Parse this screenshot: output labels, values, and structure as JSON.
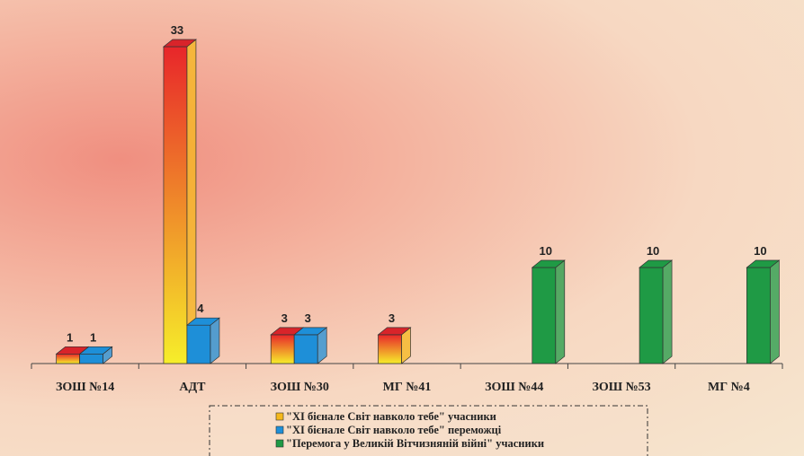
{
  "chart_data": {
    "type": "bar3d",
    "categories": [
      "ЗОШ №14",
      "АДТ",
      "ЗОШ №30",
      "МГ №41",
      "ЗОШ №44",
      "ЗОШ №53",
      "МГ №4"
    ],
    "series": [
      {
        "name": "\"XI бієнале Світ навколо тебе\" учасники",
        "color": "#f5b81c",
        "values": [
          1,
          33,
          3,
          3,
          null,
          null,
          null
        ]
      },
      {
        "name": "\"XI бієнале Світ навколо тебе\" переможці",
        "color": "#1e8fd8",
        "values": [
          1,
          4,
          3,
          null,
          null,
          null,
          null
        ]
      },
      {
        "name": "\"Перемога у Великій Вітчизняній війні\" учасники",
        "color": "#1f9a45",
        "values": [
          null,
          null,
          null,
          null,
          10,
          10,
          10
        ]
      }
    ]
  }
}
